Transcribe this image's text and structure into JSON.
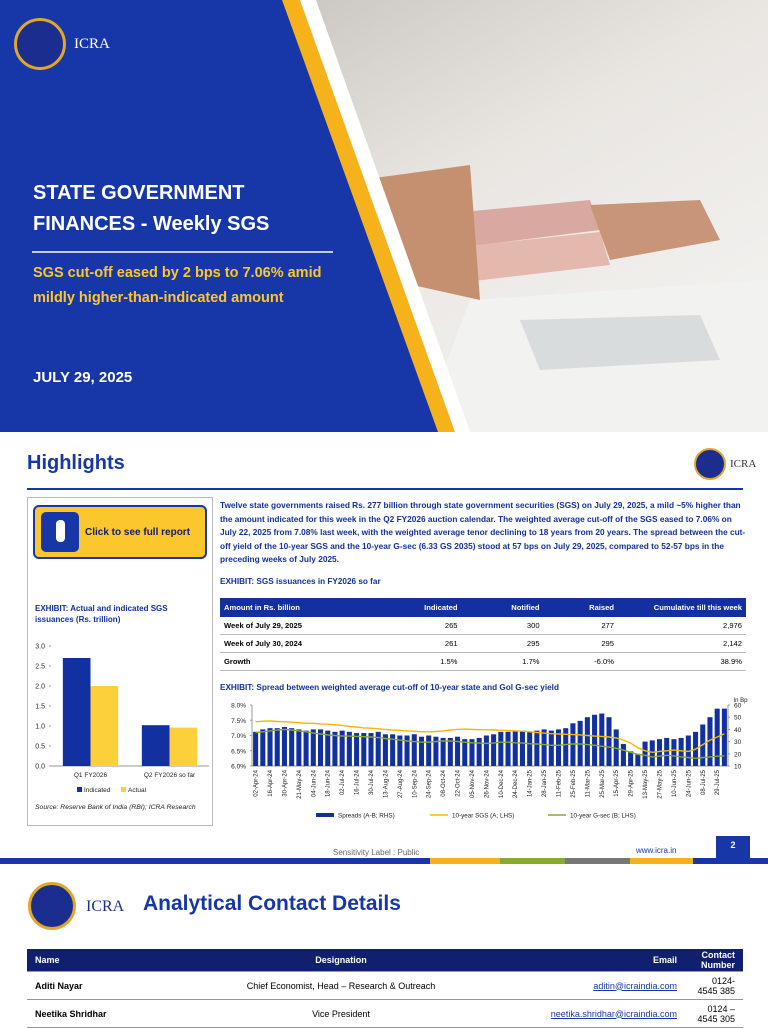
{
  "cover": {
    "logo_text": "ICRA",
    "title": "STATE GOVERNMENT FINANCES - Weekly SGS",
    "subtitle": "SGS cut-off eased by 2 bps to 7.06% amid mildly higher-than-indicated amount",
    "date": "JULY 29, 2025"
  },
  "highlights": {
    "title": "Highlights",
    "logo_text": "ICRA",
    "button": "Click to see full report",
    "source": "Source: Reserve Bank of India (RBI); ICRA Research",
    "paragraph": "Twelve state governments raised Rs. 277 billion through state government securities (SGS) on July 29, 2025, a mild ~5% higher than the amount indicated for this week in the Q2 FY2026 auction calendar. The weighted average cut-off of the SGS eased to 7.06% on July 22, 2025 from 7.08% last week, with the weighted average tenor declining to 18 years from 20 years. The spread between the cut-off yield of the 10-year SGS and the 10-year G-sec (6.33 GS 2035) stood at 57 bps on July 29, 2025, compared to 52-57 bps in the preceding weeks of July 2025.",
    "table_title": "EXHIBIT: SGS issuances in FY2026 so far",
    "table": {
      "header": [
        "Amount in Rs. billion",
        "Indicated",
        "Notified",
        "Raised",
        "Cumulative till this week"
      ],
      "rows": [
        [
          "Week of July 29, 2025",
          "265",
          "300",
          "277",
          "2,976"
        ],
        [
          "Week of July 30, 2024",
          "261",
          "295",
          "295",
          "2,142"
        ],
        [
          "Growth",
          "1.5%",
          "1.7%",
          "-6.0%",
          "38.9%"
        ]
      ]
    }
  },
  "chart_data": [
    {
      "type": "bar",
      "title": "EXHIBIT: Actual and indicated SGS issuances (Rs. trillion)",
      "categories": [
        "Q1 FY2026",
        "Q2 FY2026 so far"
      ],
      "series": [
        {
          "name": "Indicated",
          "color": "#1230a0",
          "values": [
            2.7,
            1.02
          ]
        },
        {
          "name": "Actual",
          "color": "#fcd03a",
          "values": [
            2.0,
            0.96
          ]
        }
      ],
      "ylim": [
        0,
        3
      ],
      "yticks": [
        {
          "value": 0,
          "label": "0.0"
        },
        0.5,
        {
          "value": 1,
          "label": "1.0"
        },
        1.5,
        {
          "value": 2,
          "label": "2.0"
        },
        2.5,
        {
          "value": 3,
          "label": "3.0"
        }
      ],
      "legend": "bottom"
    },
    {
      "type": "combo",
      "title": "EXHIBIT: Spread between weighted average cut-off of 10-year state and GoI G-sec yield",
      "categories": [
        "02-Apr-24",
        null,
        "16-Apr-24",
        null,
        "30-Apr-24",
        null,
        "21-May-24",
        null,
        "04-Jun-24",
        null,
        "18-Jun-24",
        null,
        "02-Jul-24",
        null,
        "16-Jul-24",
        null,
        "30-Jul-24",
        null,
        "13-Aug-24",
        null,
        "27-Aug-24",
        null,
        "10-Sep-24",
        null,
        "24-Sep-24",
        null,
        "08-Oct-24",
        null,
        "22-Oct-24",
        null,
        "05-Nov-24",
        null,
        "26-Nov-24",
        null,
        "10-Dec-24",
        null,
        "24-Dec-24",
        null,
        "14-Jan-25",
        null,
        "28-Jan-25",
        null,
        "11-Feb-25",
        null,
        "25-Feb-25",
        null,
        "11-Mar-25",
        null,
        "25-Mar-25",
        null,
        "15-Apr-25",
        null,
        "29-Apr-25",
        null,
        "13-May-25",
        null,
        "27-May-25",
        null,
        "10-Jun-25",
        null,
        "24-Jun-25",
        null,
        "08-Jul-25",
        null,
        "29-Jul-25",
        null
      ],
      "series": [
        {
          "name": "Spreads (A-B; RHS)",
          "color": "#1230a0",
          "axis": "y2",
          "kind": "bar",
          "values": [
            38,
            40,
            41,
            41,
            42,
            41,
            40,
            39,
            40,
            40,
            39,
            38,
            39,
            38,
            37,
            37,
            37,
            38,
            36,
            36,
            35,
            35,
            36,
            34,
            35,
            34,
            33,
            33,
            34,
            32,
            32,
            33,
            35,
            36,
            38,
            38,
            39,
            39,
            38,
            39,
            40,
            39,
            40,
            41,
            45,
            47,
            50,
            52,
            53,
            50,
            40,
            28,
            22,
            20,
            30,
            31,
            32,
            33,
            32,
            33,
            35,
            38,
            44,
            50,
            57,
            57
          ]
        },
        {
          "name": "10-year SGS (A; LHS)",
          "color": "#f5b800",
          "axis": "y",
          "kind": "line",
          "values": [
            7.45,
            7.47,
            7.48,
            7.46,
            7.45,
            7.44,
            7.42,
            7.4,
            7.4,
            7.38,
            7.37,
            7.35,
            7.33,
            7.3,
            7.28,
            7.25,
            7.24,
            7.22,
            7.2,
            7.18,
            7.17,
            7.15,
            7.14,
            7.12,
            7.12,
            7.13,
            7.15,
            7.18,
            7.2,
            7.21,
            7.2,
            7.19,
            7.19,
            7.18,
            7.17,
            7.16,
            7.15,
            7.14,
            7.12,
            7.1,
            7.08,
            7.06,
            7.05,
            7.04,
            7.03,
            7.02,
            7.0,
            6.98,
            6.97,
            6.95,
            6.92,
            6.85,
            6.75,
            6.6,
            6.5,
            6.45,
            6.48,
            6.5,
            6.52,
            6.5,
            6.48,
            6.55,
            6.7,
            6.85,
            6.95,
            7.06
          ]
        },
        {
          "name": "10-year G-sec (B; LHS)",
          "color": "#8aa832",
          "axis": "y",
          "kind": "line",
          "values": [
            7.1,
            7.12,
            7.15,
            7.18,
            7.2,
            7.18,
            7.15,
            7.12,
            7.08,
            7.05,
            7.02,
            7.0,
            6.98,
            6.98,
            6.97,
            6.96,
            6.95,
            6.93,
            6.9,
            6.88,
            6.85,
            6.82,
            6.8,
            6.78,
            6.78,
            6.8,
            6.82,
            6.82,
            6.8,
            6.78,
            6.76,
            6.75,
            6.74,
            6.75,
            6.78,
            6.78,
            6.76,
            6.75,
            6.73,
            6.72,
            6.7,
            6.68,
            6.68,
            6.7,
            6.72,
            6.72,
            6.7,
            6.68,
            6.65,
            6.62,
            6.58,
            6.52,
            6.45,
            6.38,
            6.35,
            6.3,
            6.32,
            6.35,
            6.33,
            6.3,
            6.28,
            6.25,
            6.28,
            6.3,
            6.32,
            6.33
          ]
        }
      ],
      "ylim": [
        6,
        8
      ],
      "yticks": [
        {
          "value": 6,
          "label": "6.0%"
        },
        {
          "value": 6.5,
          "label": "6.5%"
        },
        {
          "value": 7,
          "label": "7.0%"
        },
        {
          "value": 7.5,
          "label": "7.5%"
        },
        {
          "value": 8,
          "label": "8.0%"
        }
      ],
      "y2lim": [
        10,
        60
      ],
      "y2ticks": [
        10,
        20,
        30,
        40,
        50,
        60
      ],
      "y2_label": "In Bps",
      "legend": "bottom"
    }
  ],
  "footer": {
    "sensitivity": "Sensitivity Label : Public",
    "website": "www.icra.in",
    "page": "2"
  },
  "contacts": {
    "logo_text": "ICRA",
    "title": "Analytical Contact Details",
    "header": [
      "Name",
      "Designation",
      "Email",
      "Contact Number"
    ],
    "rows": [
      [
        "Aditi Nayar",
        "Chief Economist, Head – Research & Outreach",
        "aditin@icraindia.com",
        "0124- 4545 385"
      ],
      [
        "Neetika Shridhar",
        "Vice President",
        "neetika.shridhar@icraindia.com",
        "0124 – 4545 305"
      ]
    ]
  }
}
